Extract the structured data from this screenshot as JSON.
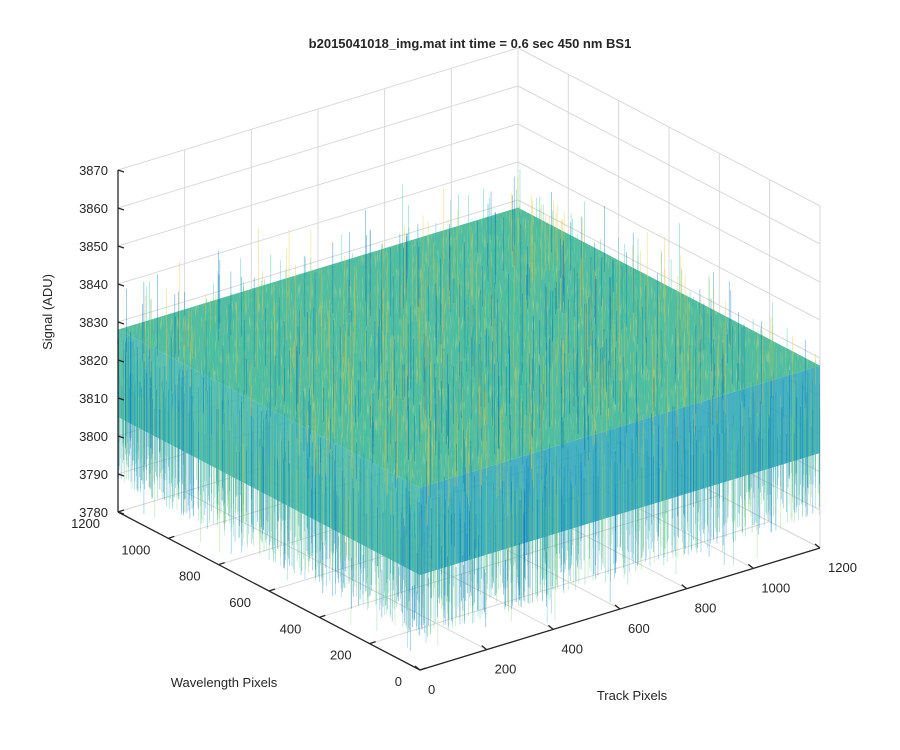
{
  "chart_data": {
    "type": "surface",
    "title": "b2015041018_img.mat int time = 0.6 sec  450 nm BS1",
    "xlabel": "Track Pixels",
    "ylabel": "Wavelength Pixels",
    "zlabel": "Signal (ADU)",
    "xlim": [
      0,
      1200
    ],
    "ylim": [
      0,
      1200
    ],
    "zlim": [
      3780,
      3870
    ],
    "xticks": [
      "0",
      "200",
      "400",
      "600",
      "800",
      "1000",
      "1200"
    ],
    "yticks": [
      "0",
      "200",
      "400",
      "600",
      "800",
      "1000",
      "1200"
    ],
    "zticks": [
      "3780",
      "3790",
      "3800",
      "3810",
      "3820",
      "3830",
      "3840",
      "3850",
      "3860",
      "3870"
    ],
    "grid": true,
    "colormap": "parula",
    "surface": {
      "x_extent": [
        0,
        1200
      ],
      "y_extent": [
        0,
        1200
      ],
      "mean_signal": 3815,
      "typical_range": [
        3795,
        3840
      ],
      "min_spike": 3785,
      "max_spike": 3862
    },
    "colors": {
      "axis": "#262626",
      "grid": "#d9d9d9",
      "surface_low": "#0072bd",
      "surface_mid": "#2ec4a0",
      "surface_high": "#e6c53a"
    }
  }
}
